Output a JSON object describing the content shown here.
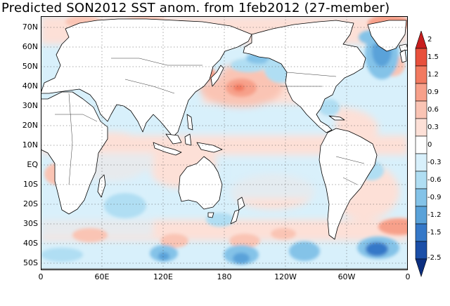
{
  "title": "Predicted SON2012 SST anom. from 1feb2012 (27-member)",
  "map": {
    "lat_labels": [
      "70N",
      "60N",
      "50N",
      "40N",
      "30N",
      "20N",
      "10N",
      "EQ",
      "10S",
      "20S",
      "30S",
      "40S",
      "50S"
    ],
    "lon_labels": [
      "0",
      "60E",
      "120E",
      "180",
      "120W",
      "60W",
      "0"
    ],
    "land_color": "#ffffff",
    "projection": "cylindrical-equidistant"
  },
  "colorbar": {
    "labels": [
      "2",
      "1.5",
      "1.2",
      "0.9",
      "0.6",
      "0.3",
      "0",
      "-0.3",
      "-0.6",
      "-0.9",
      "-1.2",
      "-1.5",
      "-2.5"
    ],
    "colors": [
      "#c81e1e",
      "#e8503c",
      "#f27a60",
      "#f7a08a",
      "#fac4b4",
      "#fde0d7",
      "#ffffff",
      "#d8f0fb",
      "#b0def3",
      "#84c3e8",
      "#5aa2d9",
      "#3578c8",
      "#1b4fa8",
      "#0c2f80"
    ]
  }
}
